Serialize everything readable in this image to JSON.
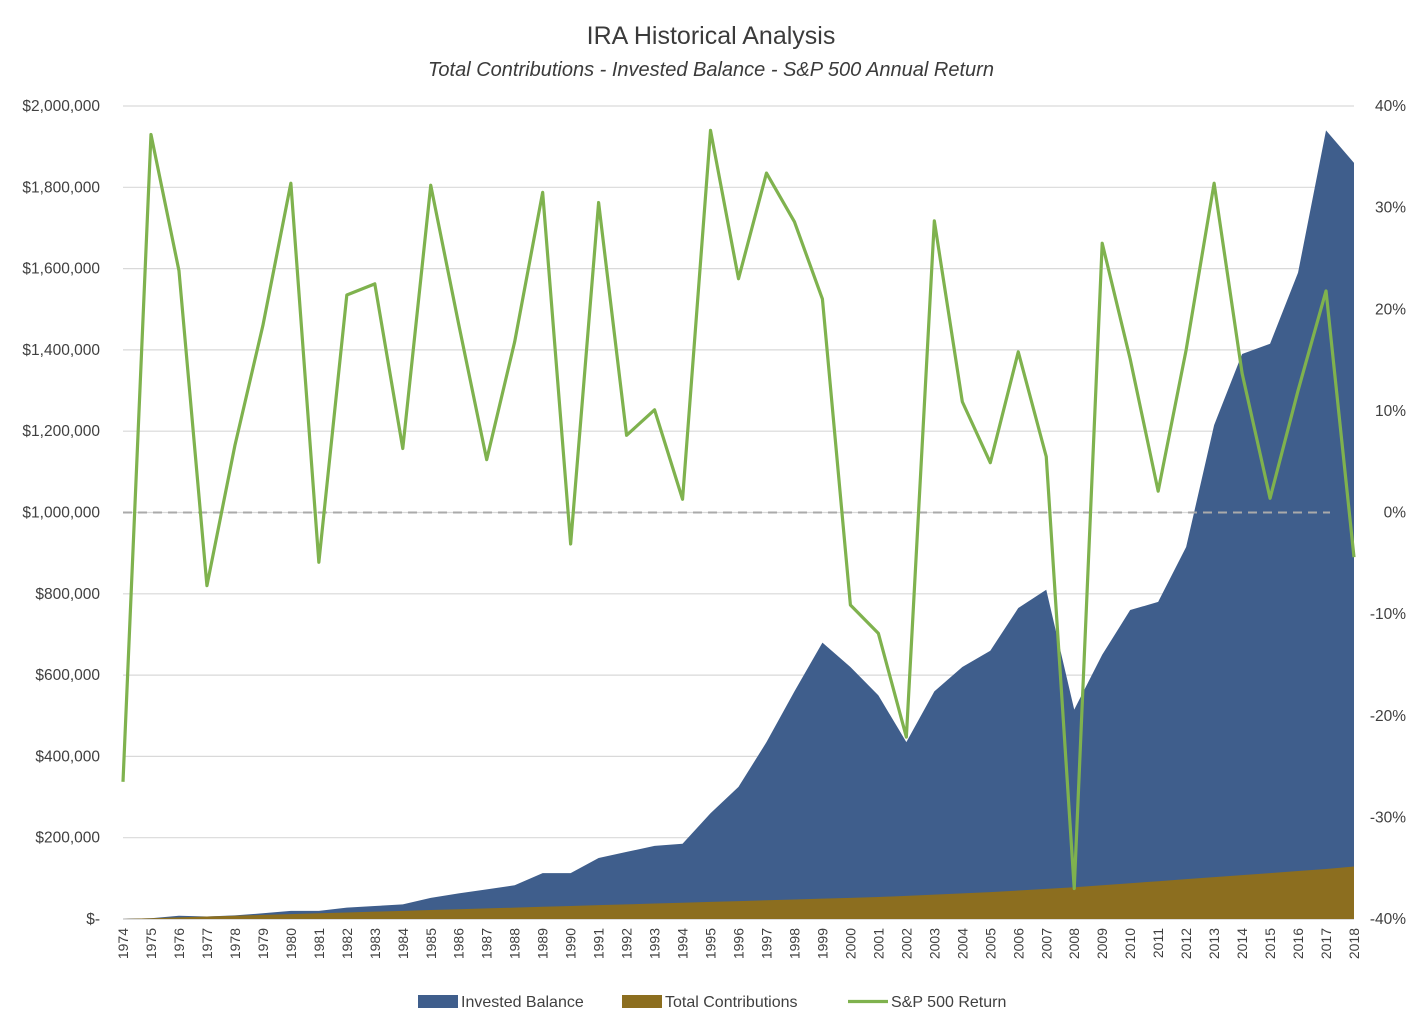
{
  "chart_data": {
    "type": "area",
    "title": "IRA Historical Analysis",
    "subtitle": "Total Contributions - Invested Balance - S&P 500 Annual Return",
    "x": [
      1974,
      1975,
      1976,
      1977,
      1978,
      1979,
      1980,
      1981,
      1982,
      1983,
      1984,
      1985,
      1986,
      1987,
      1988,
      1989,
      1990,
      1991,
      1992,
      1993,
      1994,
      1995,
      1996,
      1997,
      1998,
      1999,
      2000,
      2001,
      2002,
      2003,
      2004,
      2005,
      2006,
      2007,
      2008,
      2009,
      2010,
      2011,
      2012,
      2013,
      2014,
      2015,
      2016,
      2017,
      2018
    ],
    "xtick_labels": [
      "1974",
      "1975",
      "1976",
      "1977",
      "1978",
      "1979",
      "1980",
      "1981",
      "1982",
      "1983",
      "1984",
      "1985",
      "1986",
      "1987",
      "1988",
      "1989",
      "1990",
      "1991",
      "1992",
      "1993",
      "1994",
      "1995",
      "1996",
      "1997",
      "1998",
      "1999",
      "2000",
      "2001",
      "2002",
      "2003",
      "2004",
      "2005",
      "2006",
      "2007",
      "2008",
      "2009",
      "2010",
      "2011",
      "2012",
      "2013",
      "2014",
      "2015",
      "2016",
      "2017",
      "2018"
    ],
    "y_left": {
      "ylim": [
        0,
        2000000
      ],
      "tick_values": [
        0,
        200000,
        400000,
        600000,
        800000,
        1000000,
        1200000,
        1400000,
        1600000,
        1800000,
        2000000
      ],
      "tick_labels": [
        "$-",
        "$200,000",
        "$400,000",
        "$600,000",
        "$800,000",
        "$1,000,000",
        "$1,200,000",
        "$1,400,000",
        "$1,600,000",
        "$1,800,000",
        "$2,000,000"
      ]
    },
    "y_right": {
      "ylim": [
        -40,
        40
      ],
      "tick_values": [
        -40,
        -30,
        -20,
        -10,
        0,
        10,
        20,
        30,
        40
      ],
      "tick_labels": [
        "-40%",
        "-30%",
        "-20%",
        "-10%",
        "0%",
        "10%",
        "20%",
        "30%",
        "40%"
      ]
    },
    "grid": true,
    "legend_position": "bottom",
    "series": [
      {
        "name": "Invested Balance",
        "kind": "area",
        "axis": "left",
        "color": "#3f5e8c",
        "values": [
          0,
          2000,
          8000,
          6000,
          9000,
          14000,
          20000,
          20000,
          28000,
          32000,
          36000,
          52000,
          63000,
          73000,
          83000,
          113000,
          113000,
          150000,
          165000,
          180000,
          185000,
          260000,
          325000,
          435000,
          560000,
          680000,
          620000,
          550000,
          435000,
          560000,
          620000,
          660000,
          765000,
          810000,
          515000,
          650000,
          760000,
          780000,
          915000,
          1215000,
          1390000,
          1415000,
          1590000,
          1940000,
          1860000
        ]
      },
      {
        "name": "Total Contributions",
        "kind": "area",
        "axis": "left",
        "color": "#8c6e1f",
        "values": [
          0,
          2000,
          4000,
          6000,
          8000,
          10000,
          12000,
          14000,
          16000,
          18000,
          20000,
          22000,
          24000,
          26000,
          28000,
          30000,
          32000,
          34000,
          36000,
          38000,
          40000,
          42000,
          44000,
          46000,
          48000,
          50000,
          52000,
          54000,
          57000,
          60000,
          63000,
          66000,
          70000,
          74000,
          78000,
          83000,
          88000,
          93000,
          98000,
          103000,
          108000,
          113000,
          118000,
          123000,
          129000
        ]
      },
      {
        "name": "S&P 500 Return",
        "kind": "line",
        "axis": "right",
        "color": "#7fb24e",
        "values": [
          -26.5,
          37.2,
          23.8,
          -7.2,
          6.6,
          18.4,
          32.4,
          -4.9,
          21.4,
          22.5,
          6.3,
          32.2,
          18.5,
          5.2,
          16.8,
          31.5,
          -3.1,
          30.5,
          7.6,
          10.1,
          1.3,
          37.6,
          23.0,
          33.4,
          28.6,
          21.0,
          -9.1,
          -11.9,
          -22.1,
          28.7,
          10.9,
          4.9,
          15.8,
          5.5,
          -37.0,
          26.5,
          15.1,
          2.1,
          16.0,
          32.4,
          13.7,
          1.4,
          12.0,
          21.8,
          -4.4
        ]
      }
    ],
    "reference_line": {
      "axis": "right",
      "value": 0,
      "style": "dashed",
      "color": "#aaaaaa"
    }
  }
}
